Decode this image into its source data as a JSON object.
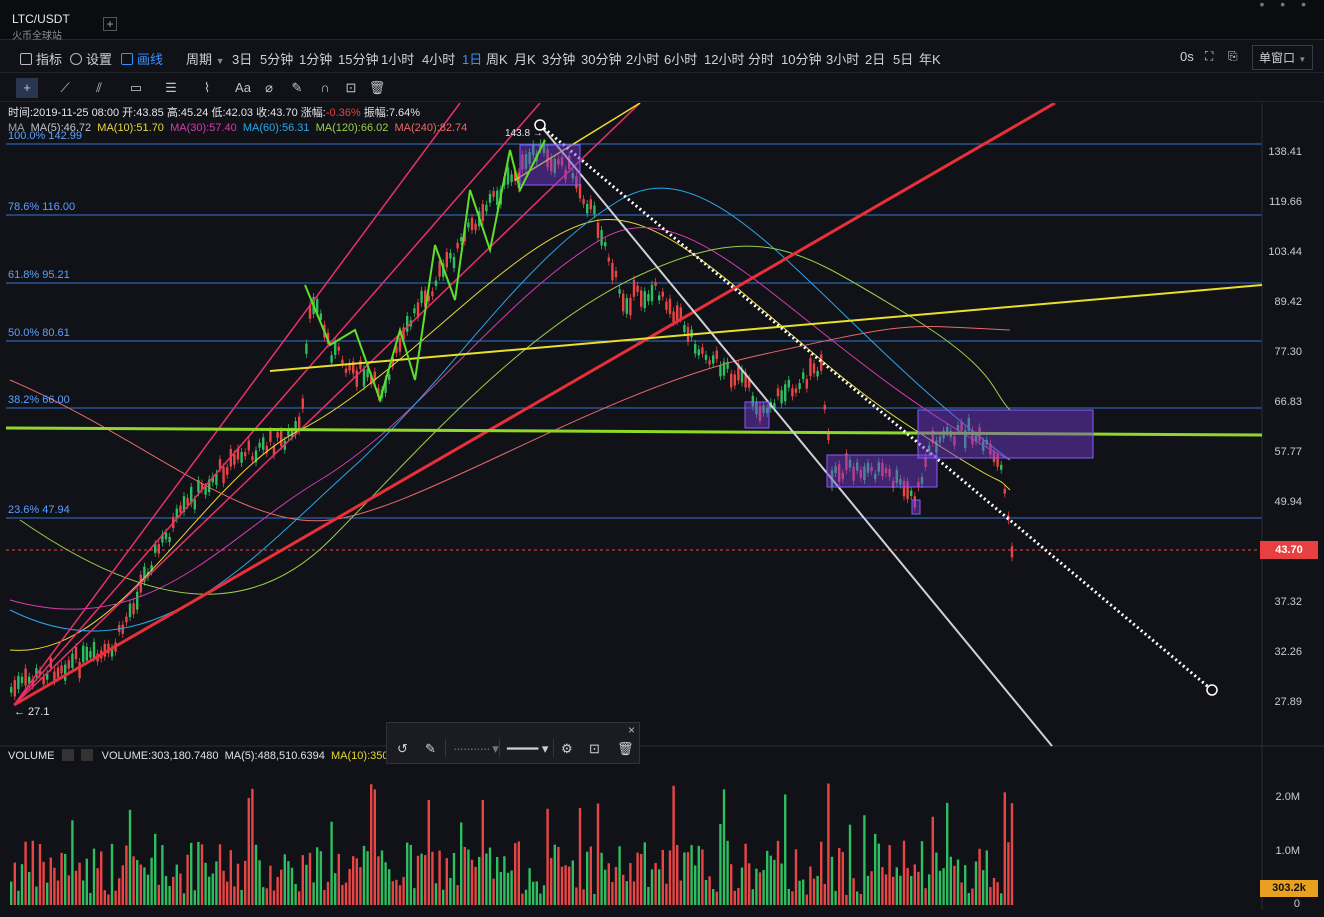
{
  "tab": {
    "symbol": "LTC/USDT",
    "exchange": "火币全球站",
    "add_label": "+",
    "more_label": "• • •"
  },
  "toolbar": {
    "indicators": "指标",
    "settings": "设置",
    "drawing": "画线",
    "period_label": "周期",
    "periods": [
      "3日",
      "5分钟",
      "1分钟",
      "15分钟",
      "1小时",
      "4小时",
      "1日",
      "周K",
      "月K",
      "3分钟",
      "30分钟",
      "2小时",
      "6小时",
      "12小时",
      "分时",
      "10分钟",
      "3小时",
      "2日",
      "5日",
      "年K"
    ],
    "active_period": "1日",
    "countdown": "0s",
    "window_mode": "单窗口"
  },
  "drawing_tools": [
    "crosshair-icon",
    "line-tool-icon",
    "channel-icon",
    "rect-tool-icon",
    "fib-tool-icon",
    "wave-tool-icon",
    "text-tool-icon",
    "measure-icon",
    "brush-icon",
    "magnet-icon",
    "lock-icon",
    "delete-icon"
  ],
  "info": {
    "time": "时间:2019-11-25 08:00",
    "open": "开:43.85",
    "high": "高:45.24",
    "low": "低:42.03",
    "close": "收:43.70",
    "change_label": "涨幅:",
    "change": "-0.36%",
    "amp": "振幅:7.64%"
  },
  "ma": {
    "label": "MA",
    "ma5": "MA(5):46.72",
    "ma10": "MA(10):51.70",
    "ma30": "MA(30):57.40",
    "ma60": "MA(60):56.31",
    "ma120": "MA(120):66.02",
    "ma240": "MA(240):82.74",
    "colors": {
      "ma5": "#c0c4cc",
      "ma10": "#e8d83a",
      "ma30": "#d33bb0",
      "ma60": "#2aa6e8",
      "ma120": "#9ad14a",
      "ma240": "#e86a6a"
    }
  },
  "price_axis": [
    "138.41",
    "119.66",
    "103.44",
    "89.42",
    "77.30",
    "66.83",
    "57.77",
    "49.94",
    "43.70",
    "37.32",
    "32.26",
    "27.89"
  ],
  "fib_levels": [
    {
      "label": "100.0% 142.99"
    },
    {
      "label": "78.6% 116.00"
    },
    {
      "label": "61.8% 95.21"
    },
    {
      "label": "50.0% 80.61"
    },
    {
      "label": "38.2% 66.00"
    },
    {
      "label": "23.6% 47.94"
    }
  ],
  "current_price": "43.70",
  "low_marker": "← 27.1",
  "high_marker": "143.8 →",
  "volume": {
    "label": "VOLUME",
    "value": "VOLUME:303,180.7480",
    "ma5": "MA(5):488,510.6394",
    "ma10": "MA(10):350,3",
    "axis": [
      "2.0M",
      "1.0M",
      "0"
    ],
    "current": "303.2k"
  },
  "colors": {
    "up": "#2ebd5f",
    "down": "#e84545",
    "accent": "#3a8fff",
    "fib": "#3a8fff"
  }
}
